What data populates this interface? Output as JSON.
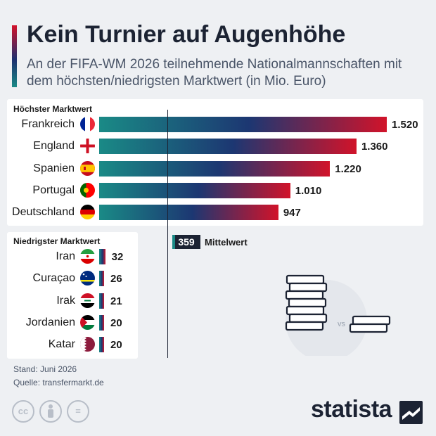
{
  "header": {
    "title": "Kein Turnier auf Augenhöhe",
    "subtitle": "An der FIFA-WM 2026 teilnehmende Nationalmannschaften mit dem höchsten/niedrigsten Marktwert (in Mio. Euro)"
  },
  "chart_data": {
    "type": "bar",
    "orientation": "horizontal",
    "xlim": [
      0,
      1520
    ],
    "mean": {
      "value": 359,
      "value_label": "359",
      "label": "Mittelwert"
    },
    "groups": [
      {
        "label": "Höchster Marktwert",
        "categories": [
          "Frankreich",
          "England",
          "Spanien",
          "Portugal",
          "Deutschland"
        ],
        "values": [
          1520,
          1360,
          1220,
          1010,
          947
        ],
        "value_labels": [
          "1.520",
          "1.360",
          "1.220",
          "1.010",
          "947"
        ],
        "flags": [
          "france-flag-icon",
          "england-flag-icon",
          "spain-flag-icon",
          "portugal-flag-icon",
          "germany-flag-icon"
        ]
      },
      {
        "label": "Niedrigster Marktwert",
        "categories": [
          "Iran",
          "Curaçao",
          "Irak",
          "Jordanien",
          "Katar"
        ],
        "values": [
          32,
          26,
          21,
          20,
          20
        ],
        "value_labels": [
          "32",
          "26",
          "21",
          "20",
          "20"
        ],
        "flags": [
          "iran-flag-icon",
          "curacao-flag-icon",
          "iraq-flag-icon",
          "jordan-flag-icon",
          "qatar-flag-icon"
        ]
      }
    ],
    "gradient_colors": [
      "#1a8a86",
      "#1c3772",
      "#d1132a"
    ]
  },
  "illustration": {
    "vs_label": "vs",
    "icon": "coin-stacks-icon"
  },
  "footer": {
    "stand": "Stand: Juni 2026",
    "quelle": "Quelle: transfermarkt.de",
    "license_icons": [
      "cc-icon",
      "by-icon",
      "nd-icon"
    ],
    "cc_glyph": "cc",
    "nd_glyph": "="
  },
  "brand": {
    "name": "statista",
    "icon": "statista-logo-icon"
  }
}
